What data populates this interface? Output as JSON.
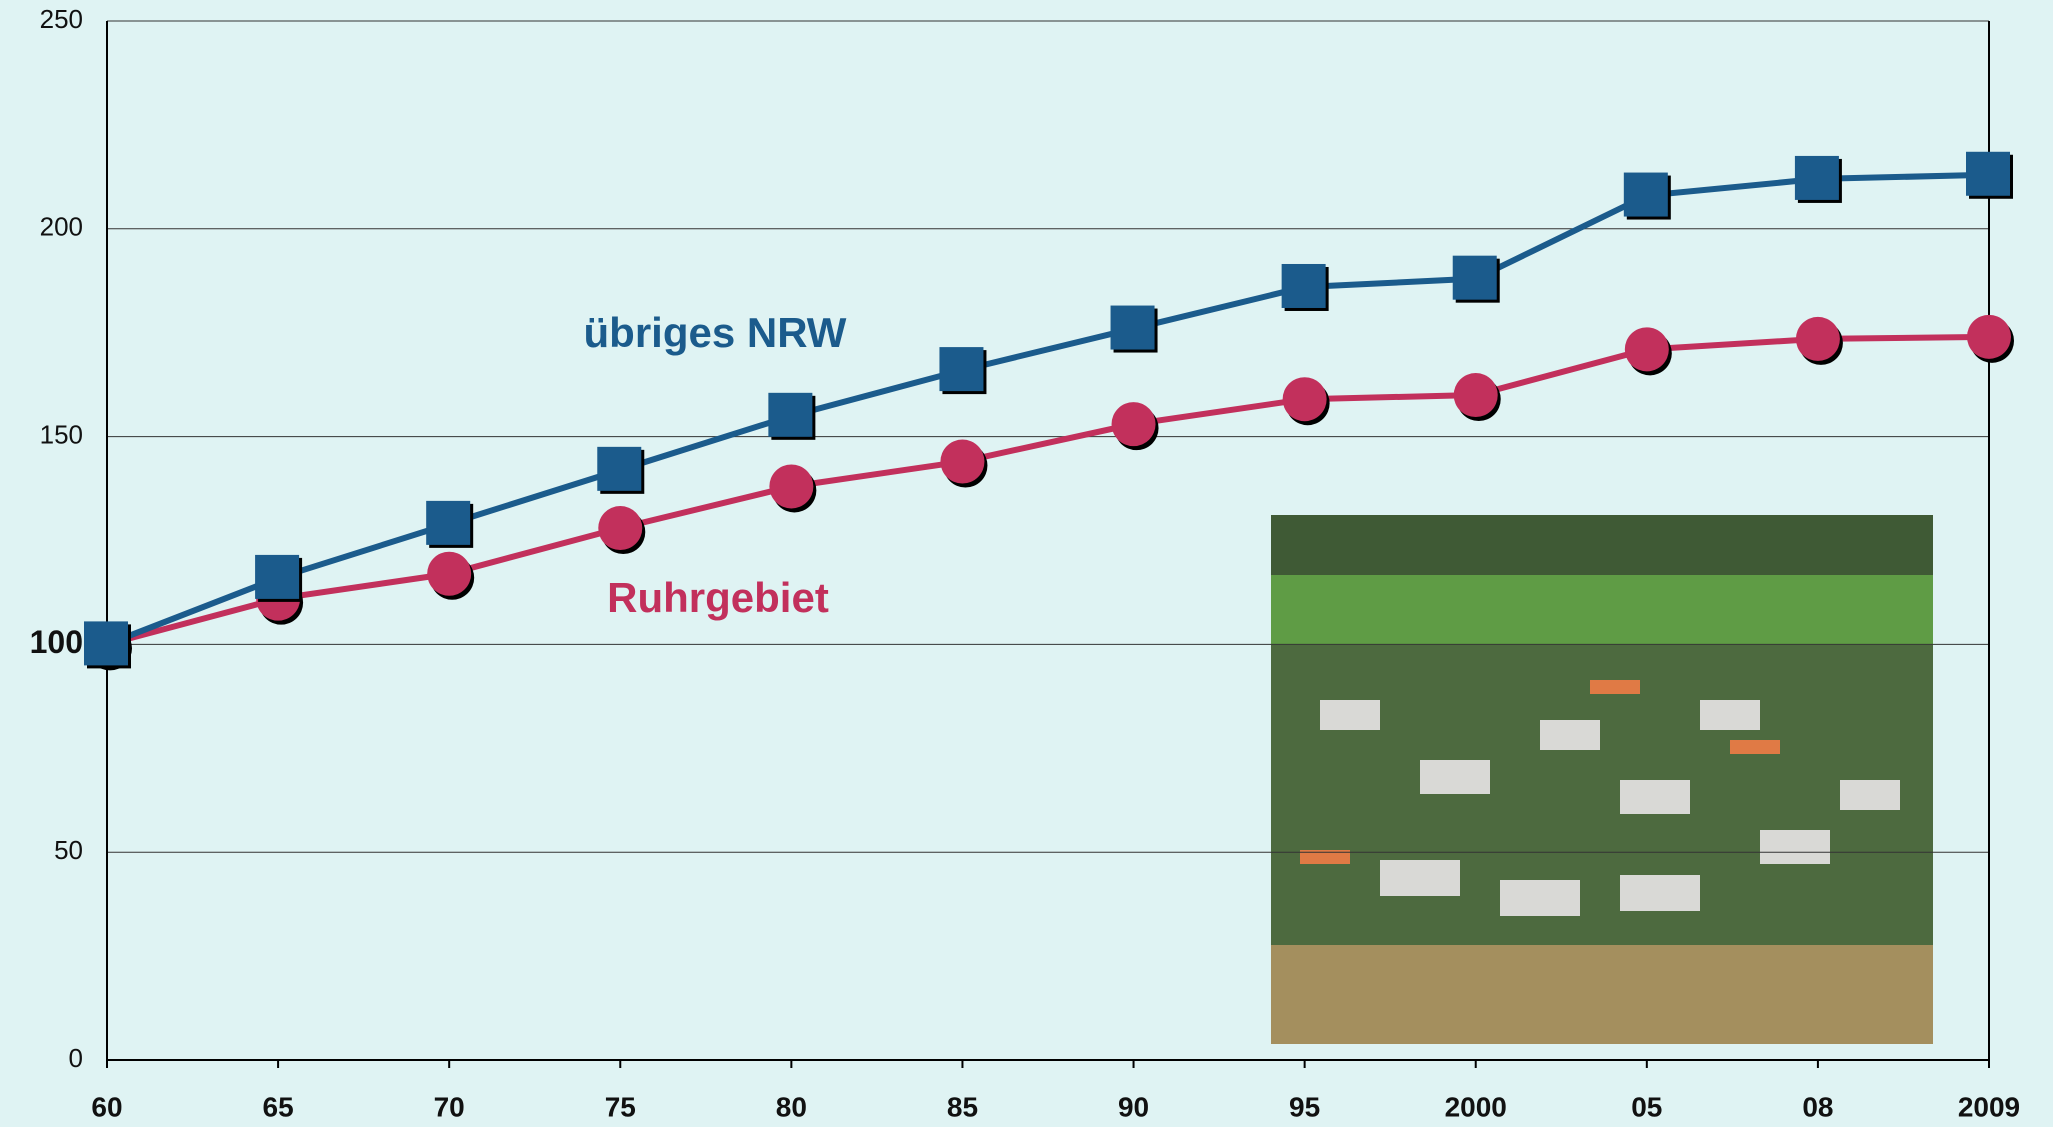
{
  "chart_data": {
    "type": "line",
    "categories": [
      "60",
      "65",
      "70",
      "75",
      "80",
      "85",
      "90",
      "95",
      "2000",
      "05",
      "08",
      "2009"
    ],
    "series": [
      {
        "name": "übriges NRW",
        "color": "#1b5b8c",
        "marker": "square",
        "values": [
          100,
          116,
          129,
          142,
          155,
          166,
          176,
          186,
          188,
          208,
          212,
          213
        ]
      },
      {
        "name": "Ruhrgebiet",
        "color": "#c2305c",
        "marker": "circle",
        "values": [
          100,
          111,
          117,
          128,
          138,
          144,
          153,
          159,
          160,
          171,
          173.5,
          174
        ]
      }
    ],
    "ylim": [
      0,
      250
    ],
    "yticks": [
      0,
      50,
      100,
      150,
      200,
      250
    ],
    "grid": true
  }
}
